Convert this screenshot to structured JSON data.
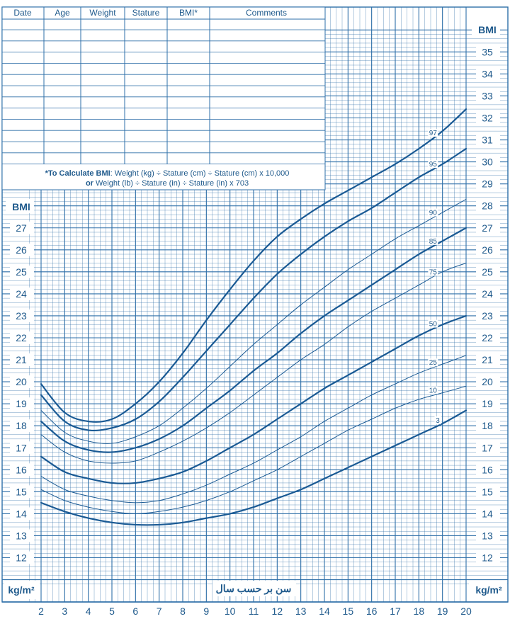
{
  "table": {
    "columns": [
      "Date",
      "Age",
      "Weight",
      "Stature",
      "BMI*",
      "Comments"
    ],
    "calc_line1_bold": "*To Calculate BMI",
    "calc_line1_rest": ": Weight (kg) ÷ Stature (cm) ÷ Stature (cm) x 10,000",
    "calc_line2_bold": "or",
    "calc_line2_rest": " Weight (lb) ÷ Stature (in) ÷ Stature (in) x 703"
  },
  "labels": {
    "bmi_left": "BMI",
    "bmi_right": "BMI",
    "unit_left": "kg/m²",
    "unit_right": "kg/m²",
    "x_axis": "سن بر حسب سال"
  },
  "colors": {
    "grid": "#2e6fa8",
    "curve": "#1a5a94",
    "text": "#1f5a8c"
  },
  "chart_data": {
    "type": "line",
    "xlabel": "سن بر حسب سال",
    "ylabel": "BMI",
    "xlim": [
      2,
      20
    ],
    "ylim": [
      11,
      36
    ],
    "x_ticks": [
      2,
      3,
      4,
      5,
      6,
      7,
      8,
      9,
      10,
      11,
      12,
      13,
      14,
      15,
      16,
      17,
      18,
      19,
      20
    ],
    "y_ticks_left": [
      12,
      13,
      14,
      15,
      16,
      17,
      18,
      19,
      20,
      21,
      22,
      23,
      24,
      25,
      26,
      27
    ],
    "y_ticks_right": [
      12,
      13,
      14,
      15,
      16,
      17,
      18,
      19,
      20,
      21,
      22,
      23,
      24,
      25,
      26,
      27,
      28,
      29,
      30,
      31,
      32,
      33,
      34,
      35
    ],
    "x": [
      2,
      3,
      4,
      5,
      6,
      7,
      8,
      9,
      10,
      11,
      12,
      13,
      14,
      15,
      16,
      17,
      18,
      19,
      20
    ],
    "series": [
      {
        "name": "97",
        "values": [
          19.9,
          18.6,
          18.2,
          18.3,
          19.0,
          20.0,
          21.3,
          22.8,
          24.2,
          25.5,
          26.6,
          27.4,
          28.1,
          28.7,
          29.3,
          29.9,
          30.6,
          31.4,
          32.4
        ]
      },
      {
        "name": "95",
        "values": [
          19.4,
          18.2,
          17.8,
          17.9,
          18.3,
          19.1,
          20.2,
          21.4,
          22.6,
          23.8,
          24.9,
          25.8,
          26.6,
          27.3,
          27.9,
          28.6,
          29.3,
          29.9,
          30.6
        ]
      },
      {
        "name": "90",
        "values": [
          18.7,
          17.7,
          17.3,
          17.2,
          17.5,
          18.0,
          18.8,
          19.7,
          20.7,
          21.7,
          22.6,
          23.5,
          24.3,
          25.1,
          25.8,
          26.5,
          27.1,
          27.7,
          28.3
        ]
      },
      {
        "name": "85",
        "values": [
          18.2,
          17.3,
          16.9,
          16.8,
          17.0,
          17.4,
          18.0,
          18.8,
          19.6,
          20.5,
          21.3,
          22.2,
          23.0,
          23.7,
          24.4,
          25.1,
          25.8,
          26.4,
          27.0
        ]
      },
      {
        "name": "75",
        "values": [
          17.6,
          16.8,
          16.4,
          16.3,
          16.4,
          16.8,
          17.3,
          17.9,
          18.6,
          19.4,
          20.2,
          21.0,
          21.7,
          22.5,
          23.2,
          23.8,
          24.4,
          25.0,
          25.4
        ]
      },
      {
        "name": "50",
        "values": [
          16.6,
          15.9,
          15.6,
          15.4,
          15.4,
          15.6,
          15.9,
          16.4,
          17.0,
          17.6,
          18.3,
          19.0,
          19.7,
          20.3,
          20.9,
          21.5,
          22.1,
          22.6,
          23.0
        ]
      },
      {
        "name": "25",
        "values": [
          15.7,
          15.1,
          14.8,
          14.6,
          14.5,
          14.6,
          14.9,
          15.3,
          15.8,
          16.3,
          16.9,
          17.5,
          18.2,
          18.8,
          19.4,
          19.9,
          20.4,
          20.8,
          21.2
        ]
      },
      {
        "name": "10",
        "values": [
          15.1,
          14.6,
          14.3,
          14.1,
          14.0,
          14.1,
          14.3,
          14.6,
          15.0,
          15.5,
          16.0,
          16.6,
          17.2,
          17.8,
          18.3,
          18.8,
          19.2,
          19.5,
          19.8
        ]
      },
      {
        "name": "3",
        "values": [
          14.5,
          14.1,
          13.8,
          13.6,
          13.5,
          13.5,
          13.6,
          13.8,
          14.0,
          14.3,
          14.7,
          15.1,
          15.6,
          16.1,
          16.6,
          17.1,
          17.6,
          18.1,
          18.7
        ]
      }
    ]
  }
}
